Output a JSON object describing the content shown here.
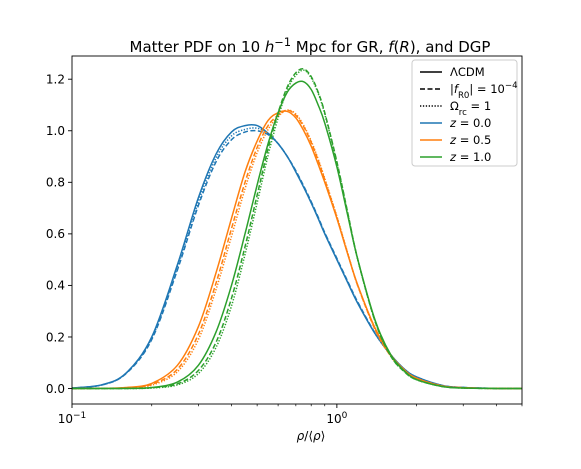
{
  "chart_data": {
    "type": "line",
    "title": "Matter PDF on 10 h⁻¹ Mpc for GR, f(R), and DGP",
    "xlabel": "ρ/⟨ρ⟩",
    "ylabel": "",
    "xscale": "log",
    "xlim": [
      0.1,
      5.0
    ],
    "ylim": [
      -0.06,
      1.29
    ],
    "grid": false,
    "legend_position": "top-right",
    "x_ticks": [
      {
        "value": 0.1,
        "label": "10⁻¹"
      },
      {
        "value": 1.0,
        "label": "10⁰"
      }
    ],
    "y_ticks": [
      {
        "value": 0.0,
        "label": "0.0"
      },
      {
        "value": 0.2,
        "label": "0.2"
      },
      {
        "value": 0.4,
        "label": "0.4"
      },
      {
        "value": 0.6,
        "label": "0.6"
      },
      {
        "value": 0.8,
        "label": "0.8"
      },
      {
        "value": 1.0,
        "label": "1.0"
      },
      {
        "value": 1.2,
        "label": "1.2"
      }
    ],
    "legend": {
      "line_styles": [
        {
          "label": "ΛCDM",
          "dash": "solid"
        },
        {
          "label": "|f_R0| = 10⁻⁴",
          "dash": "dashed"
        },
        {
          "label": "Ω_rc = 1",
          "dash": "dotted"
        }
      ],
      "redshifts": [
        {
          "label": "z = 0.0",
          "color": "#1f77b4"
        },
        {
          "label": "z = 0.5",
          "color": "#ff7f0e"
        },
        {
          "label": "z = 1.0",
          "color": "#2ca02c"
        }
      ]
    },
    "x": [
      0.1,
      0.13,
      0.16,
      0.2,
      0.25,
      0.3,
      0.35,
      0.4,
      0.45,
      0.5,
      0.55,
      0.6,
      0.65,
      0.7,
      0.75,
      0.8,
      0.85,
      0.9,
      1.0,
      1.1,
      1.2,
      1.4,
      1.6,
      1.8,
      2.0,
      2.5,
      3.0,
      4.0,
      5.0
    ],
    "series": [
      {
        "model": "ΛCDM",
        "z": "z = 0.0",
        "color": "#1f77b4",
        "dash": "solid",
        "values": [
          0.002,
          0.015,
          0.06,
          0.2,
          0.48,
          0.74,
          0.91,
          0.995,
          1.02,
          1.02,
          0.99,
          0.95,
          0.9,
          0.84,
          0.78,
          0.72,
          0.66,
          0.6,
          0.5,
          0.41,
          0.33,
          0.21,
          0.13,
          0.075,
          0.045,
          0.012,
          0.004,
          0.0006,
          0.0001
        ]
      },
      {
        "model": "|f_R0| = 10⁻⁴",
        "z": "z = 0.0",
        "color": "#1f77b4",
        "dash": "dashed",
        "values": [
          0.002,
          0.014,
          0.058,
          0.19,
          0.46,
          0.71,
          0.88,
          0.965,
          0.995,
          1.0,
          0.985,
          0.95,
          0.9,
          0.845,
          0.785,
          0.725,
          0.665,
          0.605,
          0.505,
          0.415,
          0.335,
          0.212,
          0.13,
          0.074,
          0.044,
          0.012,
          0.004,
          0.0006,
          0.0001
        ]
      },
      {
        "model": "Ω_rc = 1",
        "z": "z = 0.0",
        "color": "#1f77b4",
        "dash": "dotted",
        "values": [
          0.002,
          0.014,
          0.059,
          0.195,
          0.47,
          0.725,
          0.895,
          0.98,
          1.005,
          1.01,
          0.99,
          0.95,
          0.9,
          0.842,
          0.782,
          0.722,
          0.662,
          0.602,
          0.502,
          0.412,
          0.332,
          0.21,
          0.13,
          0.075,
          0.045,
          0.012,
          0.004,
          0.0006,
          0.0001
        ]
      },
      {
        "model": "ΛCDM",
        "z": "z = 0.5",
        "color": "#ff7f0e",
        "dash": "solid",
        "values": [
          0.0,
          0.001,
          0.004,
          0.02,
          0.09,
          0.24,
          0.45,
          0.66,
          0.84,
          0.96,
          1.04,
          1.07,
          1.075,
          1.05,
          1.0,
          0.94,
          0.87,
          0.8,
          0.66,
          0.52,
          0.4,
          0.23,
          0.13,
          0.072,
          0.04,
          0.01,
          0.003,
          0.0004,
          0.0001
        ]
      },
      {
        "model": "|f_R0| = 10⁻⁴",
        "z": "z = 0.5",
        "color": "#ff7f0e",
        "dash": "dashed",
        "values": [
          0.0,
          0.0008,
          0.003,
          0.016,
          0.075,
          0.21,
          0.41,
          0.62,
          0.8,
          0.935,
          1.02,
          1.06,
          1.08,
          1.06,
          1.015,
          0.955,
          0.885,
          0.81,
          0.665,
          0.522,
          0.398,
          0.225,
          0.125,
          0.07,
          0.039,
          0.01,
          0.003,
          0.0004,
          0.0001
        ]
      },
      {
        "model": "Ω_rc = 1",
        "z": "z = 0.5",
        "color": "#ff7f0e",
        "dash": "dotted",
        "values": [
          0.0,
          0.0006,
          0.002,
          0.013,
          0.065,
          0.19,
          0.385,
          0.59,
          0.775,
          0.915,
          1.005,
          1.055,
          1.08,
          1.065,
          1.02,
          0.96,
          0.89,
          0.815,
          0.668,
          0.524,
          0.398,
          0.225,
          0.125,
          0.07,
          0.039,
          0.01,
          0.003,
          0.0004,
          0.0001
        ]
      },
      {
        "model": "ΛCDM",
        "z": "z = 1.0",
        "color": "#2ca02c",
        "dash": "solid",
        "values": [
          0.0,
          0.0,
          0.0005,
          0.004,
          0.025,
          0.09,
          0.22,
          0.4,
          0.6,
          0.79,
          0.95,
          1.07,
          1.15,
          1.185,
          1.19,
          1.16,
          1.1,
          1.03,
          0.86,
          0.67,
          0.5,
          0.26,
          0.13,
          0.068,
          0.035,
          0.008,
          0.002,
          0.0003,
          0.0
        ]
      },
      {
        "model": "|f_R0| = 10⁻⁴",
        "z": "z = 1.0",
        "color": "#2ca02c",
        "dash": "dashed",
        "values": [
          0.0,
          0.0,
          0.0003,
          0.003,
          0.018,
          0.07,
          0.18,
          0.35,
          0.55,
          0.75,
          0.93,
          1.07,
          1.17,
          1.225,
          1.24,
          1.21,
          1.15,
          1.07,
          0.88,
          0.68,
          0.5,
          0.255,
          0.125,
          0.065,
          0.034,
          0.008,
          0.002,
          0.0003,
          0.0
        ]
      },
      {
        "model": "Ω_rc = 1",
        "z": "z = 1.0",
        "color": "#2ca02c",
        "dash": "dotted",
        "values": [
          0.0,
          0.0,
          0.0002,
          0.002,
          0.014,
          0.058,
          0.16,
          0.32,
          0.52,
          0.72,
          0.905,
          1.05,
          1.16,
          1.215,
          1.235,
          1.205,
          1.145,
          1.065,
          0.875,
          0.678,
          0.498,
          0.255,
          0.125,
          0.065,
          0.034,
          0.008,
          0.002,
          0.0003,
          0.0
        ]
      }
    ]
  }
}
